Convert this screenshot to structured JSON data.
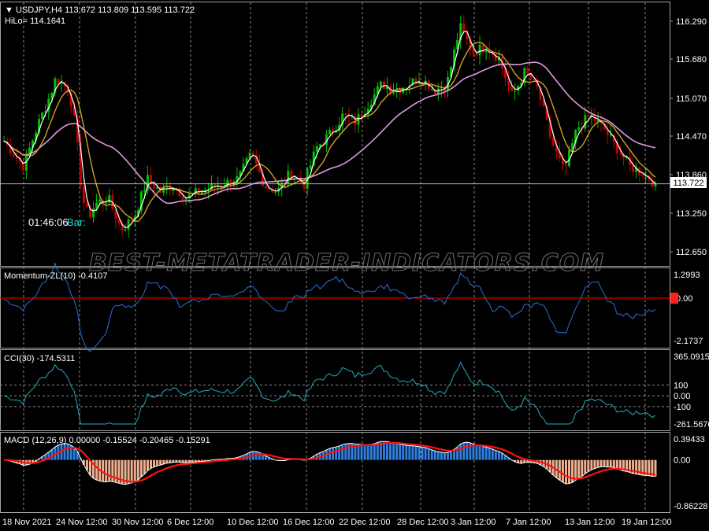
{
  "window": {
    "symbol_line": "USDJPY,H4  113.672 113.809 113.595 113.722",
    "hilo_line": "HiLo= 114.1641",
    "timer": "01:46:06",
    "bar_label": "Bar:",
    "watermark": "BEST-METATRADER-INDICATORS.COM"
  },
  "colors": {
    "background": "#000000",
    "bull_candle": "#00c000",
    "bear_candle": "#c00000",
    "ma_white": "#ffffff",
    "ma_orange": "#d2a020",
    "ma_violet": "#dd99dd",
    "momentum_line": "#2a6fd6",
    "zero_line": "#ff0000",
    "cci_line": "#22aab8",
    "macd_positive": "#2f7ee0",
    "macd_negative": "#f0b090",
    "macd_signal": "#ff1010",
    "price_marker_bg": "#ffffff",
    "zero_marker_bg": "#ff2020",
    "grid": "#8a8a8a"
  },
  "price_pane": {
    "ticks": [
      "116.290",
      "115.680",
      "115.070",
      "114.470",
      "113.860",
      "113.250",
      "112.650"
    ],
    "current_price": "113.722"
  },
  "momentum_pane": {
    "label": "Momentum-ZL(10) -0.4107",
    "ticks": [
      "1.2993",
      "0.00",
      "-2.1737"
    ]
  },
  "cci_pane": {
    "label": "CCI(30) -174.5311",
    "ticks": [
      "365.0915",
      "100",
      "0.00",
      "-100",
      "-261.5676"
    ]
  },
  "macd_pane": {
    "label": "MACD (12,26,9) 0.00000 -0.15524 -0.20465 -0.15291",
    "ticks": [
      "0.39433",
      "0.00",
      "-0.86228"
    ]
  },
  "time_axis": {
    "labels": [
      "18 Nov 2021",
      "24 Nov 12:00",
      "30 Nov 12:00",
      "6 Dec 12:00",
      "10 Dec 12:00",
      "16 Dec 12:00",
      "22 Dec 12:00",
      "28 Dec 12:00",
      "3 Jan 12:00",
      "7 Jan 12:00",
      "13 Jan 12:00",
      "19 Jan 12:00"
    ]
  },
  "chart_data": {
    "type": "line",
    "price_path": {
      "x": [
        0,
        0.03,
        0.05,
        0.07,
        0.08,
        0.09,
        0.1,
        0.11,
        0.12,
        0.13,
        0.14,
        0.16,
        0.18,
        0.2,
        0.22,
        0.24,
        0.26,
        0.28,
        0.3,
        0.33,
        0.36,
        0.38,
        0.4,
        0.42,
        0.44,
        0.46,
        0.48,
        0.5,
        0.52,
        0.54,
        0.56,
        0.58,
        0.6,
        0.62,
        0.64,
        0.66,
        0.68,
        0.7,
        0.71,
        0.72,
        0.74,
        0.76,
        0.78,
        0.8,
        0.82,
        0.84,
        0.86,
        0.88,
        0.9,
        0.92,
        0.94,
        0.96,
        0.98,
        1.0
      ],
      "y": [
        114.4,
        114.0,
        114.6,
        115.1,
        115.4,
        115.3,
        115.2,
        114.6,
        113.5,
        113.2,
        113.4,
        113.5,
        113.0,
        113.2,
        113.8,
        113.6,
        113.7,
        113.5,
        113.6,
        113.7,
        113.8,
        114.2,
        113.7,
        113.6,
        113.9,
        113.7,
        114.3,
        114.5,
        114.8,
        114.7,
        115.0,
        115.3,
        115.2,
        115.3,
        115.4,
        115.2,
        115.3,
        116.2,
        116.0,
        115.8,
        115.9,
        115.7,
        115.1,
        115.5,
        115.2,
        114.4,
        113.9,
        114.6,
        114.8,
        114.6,
        114.3,
        114.0,
        113.9,
        113.72
      ]
    }
  }
}
